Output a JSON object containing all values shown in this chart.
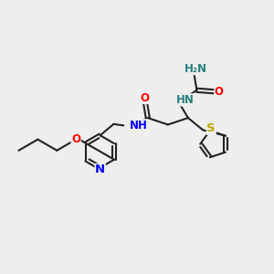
{
  "bg_color": "#eeeeee",
  "bond_color": "#222222",
  "bond_lw": 1.5,
  "atom_colors": {
    "N": "#0000ff",
    "O": "#ff0000",
    "S": "#bbaa00",
    "C": "#222222",
    "H": "#2a8080"
  },
  "font_size": 8.5,
  "fig_size": [
    3.0,
    3.0
  ],
  "dpi": 100,
  "xlim": [
    0,
    10
  ],
  "ylim": [
    0,
    10
  ]
}
